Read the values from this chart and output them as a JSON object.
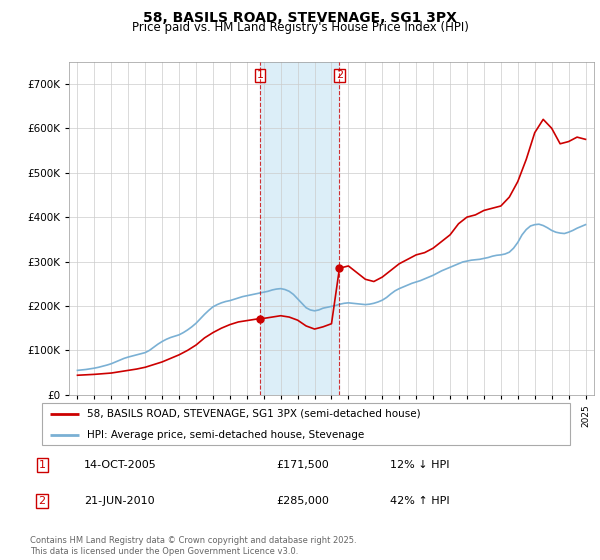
{
  "title": "58, BASILS ROAD, STEVENAGE, SG1 3PX",
  "subtitle": "Price paid vs. HM Land Registry's House Price Index (HPI)",
  "footer": "Contains HM Land Registry data © Crown copyright and database right 2025.\nThis data is licensed under the Open Government Licence v3.0.",
  "legend_line1": "58, BASILS ROAD, STEVENAGE, SG1 3PX (semi-detached house)",
  "legend_line2": "HPI: Average price, semi-detached house, Stevenage",
  "transaction1_date": "14-OCT-2005",
  "transaction1_price": "£171,500",
  "transaction1_hpi": "12% ↓ HPI",
  "transaction2_date": "21-JUN-2010",
  "transaction2_price": "£285,000",
  "transaction2_hpi": "42% ↑ HPI",
  "sale_color": "#cc0000",
  "hpi_color": "#7ab0d4",
  "background_color": "#ffffff",
  "highlight_color": "#dceef8",
  "sale1_x": 2005.79,
  "sale1_y": 171500,
  "sale2_x": 2010.47,
  "sale2_y": 285000,
  "highlight_x1": 2005.79,
  "highlight_x2": 2010.47,
  "ylim": [
    0,
    750000
  ],
  "xlim": [
    1994.5,
    2025.5
  ],
  "hpi_data_x": [
    1995.0,
    1995.25,
    1995.5,
    1995.75,
    1996.0,
    1996.25,
    1996.5,
    1996.75,
    1997.0,
    1997.25,
    1997.5,
    1997.75,
    1998.0,
    1998.25,
    1998.5,
    1998.75,
    1999.0,
    1999.25,
    1999.5,
    1999.75,
    2000.0,
    2000.25,
    2000.5,
    2000.75,
    2001.0,
    2001.25,
    2001.5,
    2001.75,
    2002.0,
    2002.25,
    2002.5,
    2002.75,
    2003.0,
    2003.25,
    2003.5,
    2003.75,
    2004.0,
    2004.25,
    2004.5,
    2004.75,
    2005.0,
    2005.25,
    2005.5,
    2005.75,
    2006.0,
    2006.25,
    2006.5,
    2006.75,
    2007.0,
    2007.25,
    2007.5,
    2007.75,
    2008.0,
    2008.25,
    2008.5,
    2008.75,
    2009.0,
    2009.25,
    2009.5,
    2009.75,
    2010.0,
    2010.25,
    2010.5,
    2010.75,
    2011.0,
    2011.25,
    2011.5,
    2011.75,
    2012.0,
    2012.25,
    2012.5,
    2012.75,
    2013.0,
    2013.25,
    2013.5,
    2013.75,
    2014.0,
    2014.25,
    2014.5,
    2014.75,
    2015.0,
    2015.25,
    2015.5,
    2015.75,
    2016.0,
    2016.25,
    2016.5,
    2016.75,
    2017.0,
    2017.25,
    2017.5,
    2017.75,
    2018.0,
    2018.25,
    2018.5,
    2018.75,
    2019.0,
    2019.25,
    2019.5,
    2019.75,
    2020.0,
    2020.25,
    2020.5,
    2020.75,
    2021.0,
    2021.25,
    2021.5,
    2021.75,
    2022.0,
    2022.25,
    2022.5,
    2022.75,
    2023.0,
    2023.25,
    2023.5,
    2023.75,
    2024.0,
    2024.25,
    2024.5,
    2024.75,
    2025.0
  ],
  "hpi_data_y": [
    55000,
    56000,
    57000,
    58500,
    60000,
    62000,
    64500,
    67000,
    70000,
    74000,
    78000,
    82000,
    85000,
    87500,
    90000,
    92500,
    95000,
    100000,
    107000,
    114000,
    120000,
    125000,
    129000,
    132000,
    135000,
    140000,
    146000,
    153000,
    161000,
    171000,
    181000,
    190000,
    198000,
    203000,
    207000,
    210000,
    212000,
    215000,
    218000,
    221000,
    223000,
    225000,
    227000,
    229000,
    231000,
    233000,
    236000,
    238000,
    239000,
    237000,
    233000,
    226000,
    216000,
    206000,
    196000,
    191000,
    189000,
    191000,
    195000,
    197000,
    199000,
    201000,
    204000,
    206000,
    207000,
    206000,
    205000,
    204000,
    203000,
    204000,
    206000,
    209000,
    213000,
    219000,
    227000,
    234000,
    239000,
    243000,
    247000,
    251000,
    254000,
    257000,
    261000,
    265000,
    269000,
    274000,
    279000,
    283000,
    287000,
    291000,
    295000,
    299000,
    301000,
    303000,
    304000,
    305000,
    307000,
    309000,
    312000,
    314000,
    315000,
    317000,
    321000,
    330000,
    343000,
    360000,
    372000,
    380000,
    383000,
    384000,
    381000,
    376000,
    370000,
    366000,
    364000,
    363000,
    366000,
    370000,
    375000,
    379000,
    383000
  ],
  "sale_data_x": [
    1995.0,
    1995.5,
    1996.0,
    1996.5,
    1997.0,
    1997.5,
    1998.0,
    1998.5,
    1999.0,
    1999.5,
    2000.0,
    2000.5,
    2001.0,
    2001.5,
    2002.0,
    2002.5,
    2003.0,
    2003.5,
    2004.0,
    2004.5,
    2005.0,
    2005.5,
    2005.79,
    2006.0,
    2006.5,
    2007.0,
    2007.5,
    2008.0,
    2008.5,
    2009.0,
    2009.5,
    2010.0,
    2010.47,
    2011.0,
    2011.5,
    2012.0,
    2012.5,
    2013.0,
    2013.5,
    2014.0,
    2014.5,
    2015.0,
    2015.5,
    2016.0,
    2016.5,
    2017.0,
    2017.5,
    2018.0,
    2018.5,
    2019.0,
    2019.5,
    2020.0,
    2020.5,
    2021.0,
    2021.5,
    2022.0,
    2022.5,
    2023.0,
    2023.5,
    2024.0,
    2024.5,
    2025.0
  ],
  "sale_data_y": [
    44000,
    45000,
    46000,
    47500,
    49000,
    52000,
    55000,
    58000,
    62000,
    68000,
    74000,
    82000,
    90000,
    100000,
    112000,
    128000,
    140000,
    150000,
    158000,
    164000,
    167000,
    170000,
    171500,
    172000,
    175000,
    178000,
    175000,
    168000,
    155000,
    148000,
    153000,
    160000,
    285000,
    290000,
    275000,
    260000,
    255000,
    265000,
    280000,
    295000,
    305000,
    315000,
    320000,
    330000,
    345000,
    360000,
    385000,
    400000,
    405000,
    415000,
    420000,
    425000,
    445000,
    480000,
    530000,
    590000,
    620000,
    600000,
    565000,
    570000,
    580000,
    575000
  ]
}
